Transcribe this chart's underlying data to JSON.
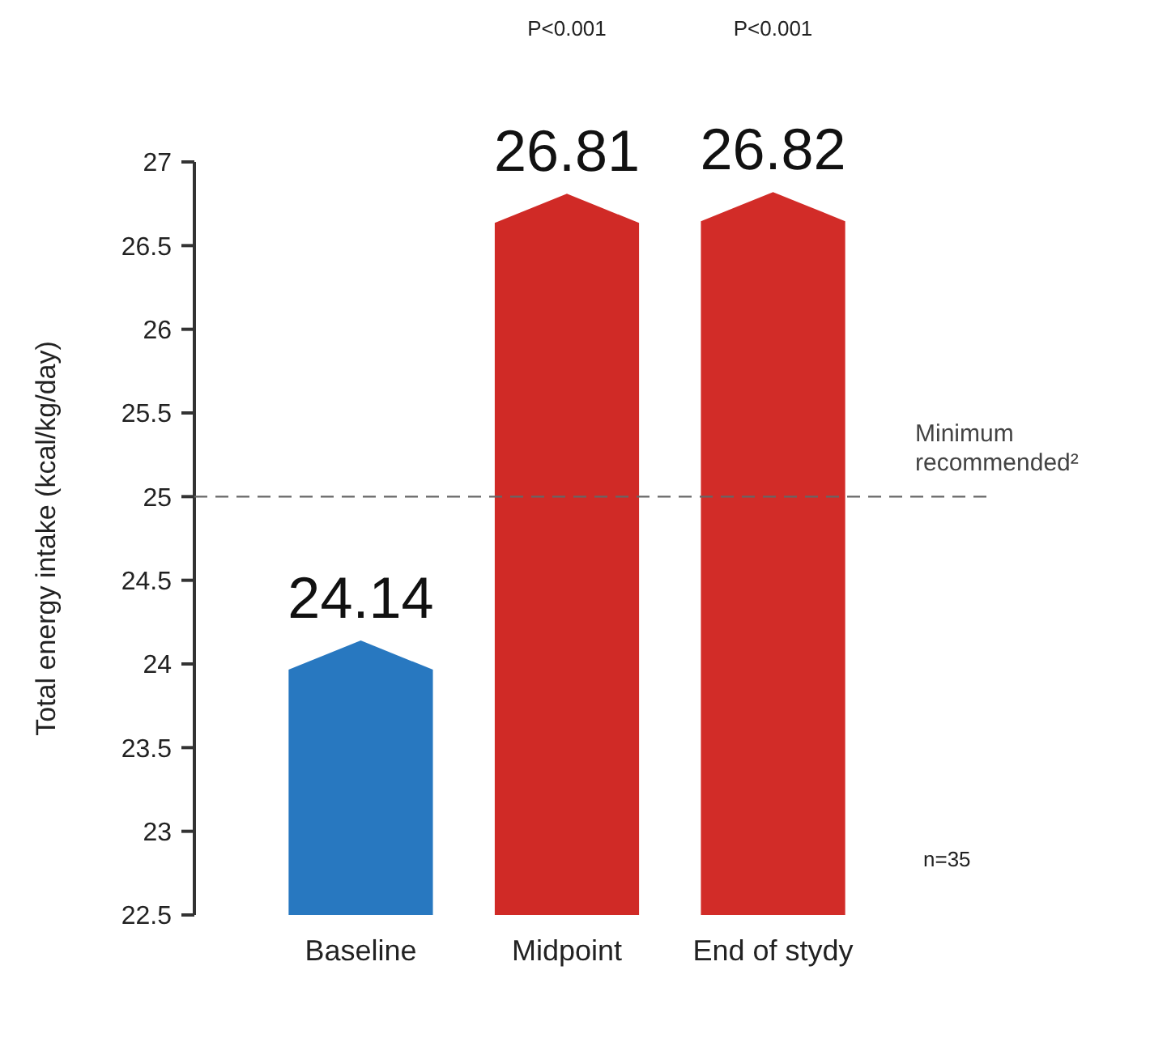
{
  "chart_data": {
    "type": "bar",
    "ylabel": "Total energy intake (kcal/kg/day)",
    "categories": [
      "Baseline",
      "Midpoint",
      "End of stydy"
    ],
    "values": [
      24.14,
      26.81,
      26.82
    ],
    "colors": [
      "#2878c0",
      "#d02a26",
      "#d22c28"
    ],
    "data_labels": true,
    "ylim": [
      22.5,
      27
    ],
    "yticks": [
      22.5,
      23,
      23.5,
      24,
      24.5,
      25,
      25.5,
      26,
      26.5,
      27
    ],
    "grid": false,
    "ref_lines": [
      {
        "axis": "y",
        "value": 25,
        "label": "Minimum recommended²",
        "color": "#666666",
        "line_style": "dashed"
      }
    ],
    "annotations": [
      "P<0.001",
      "P<0.001",
      "n=35"
    ]
  }
}
